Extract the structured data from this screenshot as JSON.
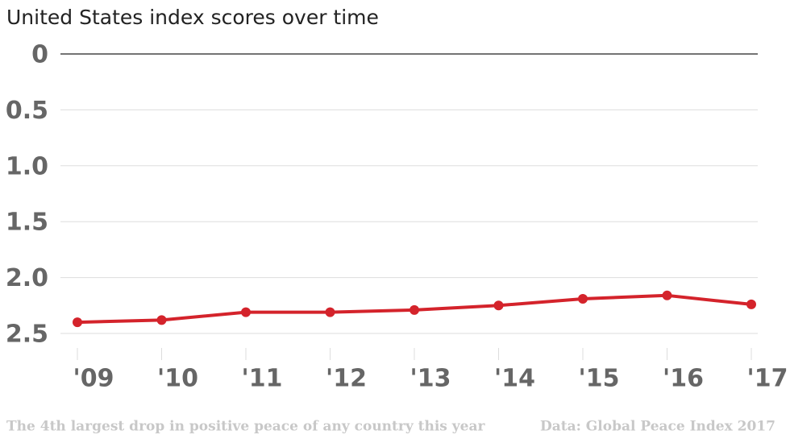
{
  "chart_data": {
    "type": "line",
    "title": "United States index scores over time",
    "categories": [
      "'09",
      "'10",
      "'11",
      "'12",
      "'13",
      "'14",
      "'15",
      "'16",
      "'17"
    ],
    "series": [
      {
        "name": "United States",
        "color": "#d4232b",
        "values": [
          2.4,
          2.38,
          2.31,
          2.31,
          2.29,
          2.25,
          2.19,
          2.16,
          2.24
        ]
      }
    ],
    "ylim": [
      0,
      2.5
    ],
    "y_inverted": true,
    "yticks": [
      0,
      0.5,
      {
        "value": 1,
        "label": "1.0"
      },
      1.5,
      {
        "value": 2,
        "label": "2.0"
      },
      2.5
    ],
    "grid": true,
    "footnote": "The 4th largest drop in positive peace of any country this year",
    "source": "Data: Global Peace Index 2017"
  }
}
